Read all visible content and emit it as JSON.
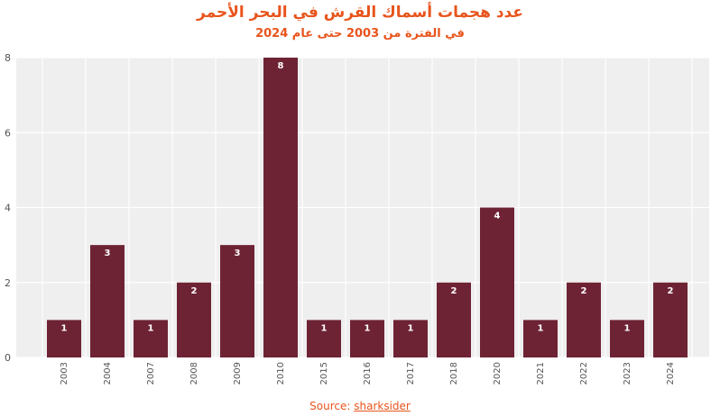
{
  "chart_data": {
    "type": "bar",
    "title": "عدد هجمات أسماك القرش في البحر الأحمر",
    "subtitle": "في الفترة من 2003 حتى عام 2024",
    "categories": [
      "2003",
      "2004",
      "2007",
      "2008",
      "2009",
      "2010",
      "2015",
      "2016",
      "2017",
      "2018",
      "2020",
      "2021",
      "2022",
      "2023",
      "2024"
    ],
    "values": [
      1,
      3,
      1,
      2,
      3,
      8,
      1,
      1,
      1,
      2,
      4,
      1,
      2,
      1,
      2
    ],
    "ylim": [
      0,
      8
    ],
    "yticks": [
      0,
      2,
      4,
      6,
      8
    ],
    "xlabel": "",
    "ylabel": "",
    "grid": true,
    "legend": "none",
    "colors": {
      "bar": "#6e2335",
      "plot_background": "#efefef",
      "title": "#e8541c",
      "axis_text": "#555555",
      "label_text": "#ffffff"
    }
  },
  "source": {
    "prefix": "Source:",
    "link_text": "sharksider"
  }
}
